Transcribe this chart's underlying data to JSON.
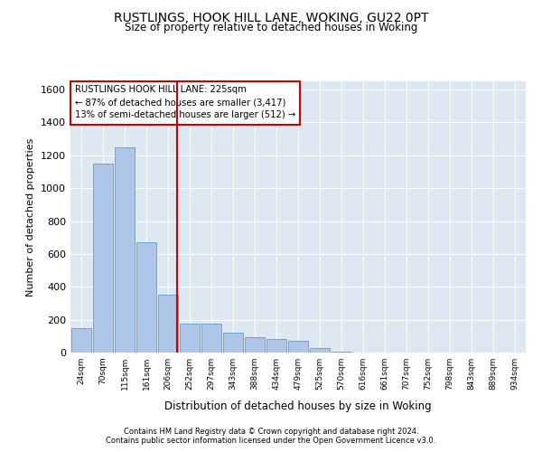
{
  "title": "RUSTLINGS, HOOK HILL LANE, WOKING, GU22 0PT",
  "subtitle": "Size of property relative to detached houses in Woking",
  "xlabel": "Distribution of detached houses by size in Woking",
  "ylabel": "Number of detached properties",
  "bar_labels": [
    "24sqm",
    "70sqm",
    "115sqm",
    "161sqm",
    "206sqm",
    "252sqm",
    "297sqm",
    "343sqm",
    "388sqm",
    "434sqm",
    "479sqm",
    "525sqm",
    "570sqm",
    "616sqm",
    "661sqm",
    "707sqm",
    "752sqm",
    "798sqm",
    "843sqm",
    "889sqm",
    "934sqm"
  ],
  "bar_values": [
    150,
    1150,
    1250,
    670,
    350,
    175,
    175,
    120,
    95,
    85,
    70,
    30,
    5,
    0,
    0,
    0,
    0,
    0,
    0,
    0,
    0
  ],
  "bar_color": "#aec6e8",
  "bar_edge_color": "#5a9fd4",
  "vline_color": "#cc0000",
  "annotation_lines": [
    "RUSTLINGS HOOK HILL LANE: 225sqm",
    "← 87% of detached houses are smaller (3,417)",
    "13% of semi-detached houses are larger (512) →"
  ],
  "ylim": [
    0,
    1650
  ],
  "yticks": [
    0,
    200,
    400,
    600,
    800,
    1000,
    1200,
    1400,
    1600
  ],
  "plot_bg_color": "#dde8f3",
  "footer1": "Contains HM Land Registry data © Crown copyright and database right 2024.",
  "footer2": "Contains public sector information licensed under the Open Government Licence v3.0."
}
